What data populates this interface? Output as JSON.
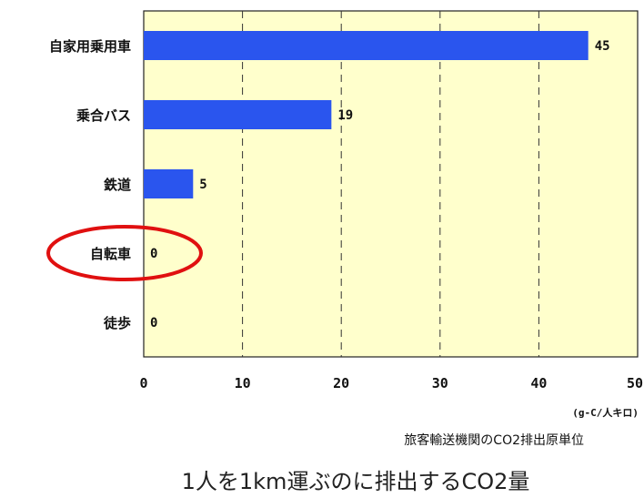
{
  "chart_data": {
    "type": "bar",
    "orientation": "horizontal",
    "categories": [
      "自家用乗用車",
      "乗合バス",
      "鉄道",
      "自転車",
      "徒歩"
    ],
    "values": [
      45,
      19,
      5,
      0,
      0
    ],
    "value_labels": [
      "45",
      "19",
      "5",
      "0",
      "0"
    ],
    "xlim": [
      0,
      50
    ],
    "xticks": [
      "0",
      "10",
      "20",
      "30",
      "40",
      "50"
    ],
    "unit": "(g-C/人キロ)",
    "subtitle": "旅客輸送機関のCO2排出原単位",
    "title": "1人を1km運ぶのに排出するCO2量",
    "grid": "vertical dashed",
    "highlighted_category": "自転車",
    "colors": {
      "bar": "#2a55ee",
      "plot_background": "#ffffcc",
      "highlight_ring": "#e01010"
    }
  }
}
